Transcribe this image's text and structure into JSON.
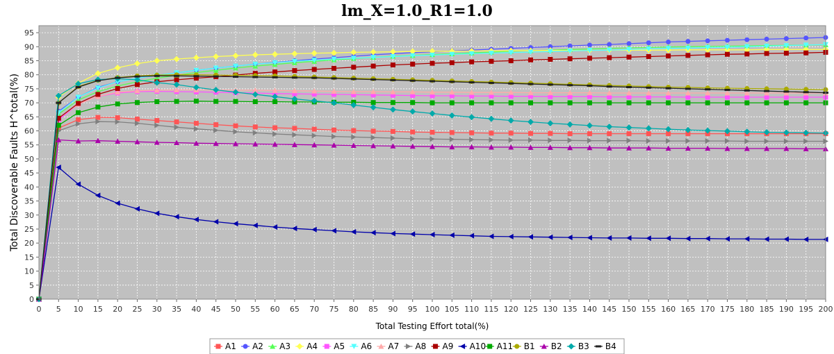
{
  "chart_data": {
    "type": "line",
    "title": "lm_X=1.0_R1=1.0",
    "xlabel": "Total Testing Effort total(%)",
    "ylabel": "Total Discoverable Faults H^total(%)",
    "xlim": [
      0,
      200
    ],
    "ylim": [
      0,
      97.5
    ],
    "x_ticks": [
      0,
      5,
      10,
      15,
      20,
      25,
      30,
      35,
      40,
      45,
      50,
      55,
      60,
      65,
      70,
      75,
      80,
      85,
      90,
      95,
      100,
      105,
      110,
      115,
      120,
      125,
      130,
      135,
      140,
      145,
      150,
      155,
      160,
      165,
      170,
      175,
      180,
      185,
      190,
      195,
      200
    ],
    "y_ticks": [
      0,
      5,
      10,
      15,
      20,
      25,
      30,
      35,
      40,
      45,
      50,
      55,
      60,
      65,
      70,
      75,
      80,
      85,
      90,
      95
    ],
    "grid": true,
    "background_color": "#c0c0c0",
    "legend_position": "bottom",
    "x": [
      0,
      5,
      10,
      15,
      20,
      25,
      30,
      35,
      40,
      45,
      50,
      55,
      60,
      65,
      70,
      75,
      80,
      85,
      90,
      95,
      100,
      105,
      110,
      115,
      120,
      125,
      130,
      135,
      140,
      145,
      150,
      155,
      160,
      165,
      170,
      175,
      180,
      185,
      190,
      195,
      200
    ],
    "series": [
      {
        "name": "A1",
        "color": "#ff5555",
        "marker": "square",
        "values": [
          0,
          61,
          64,
          64.8,
          64.7,
          64.2,
          63.7,
          63.2,
          62.7,
          62.2,
          61.8,
          61.4,
          61.1,
          60.9,
          60.6,
          60.3,
          60.1,
          59.9,
          59.8,
          59.6,
          59.5,
          59.4,
          59.3,
          59.2,
          59.2,
          59.1,
          59.1,
          59.0,
          59.0,
          59.0,
          59.0,
          59.0,
          59.0,
          59.0,
          59.0,
          59.0,
          59.0,
          59.0,
          59.0,
          59.0,
          59.0
        ]
      },
      {
        "name": "A2",
        "color": "#5555ff",
        "marker": "circle",
        "values": [
          0,
          67,
          72,
          75.5,
          77.5,
          78.8,
          79.8,
          80.7,
          81.6,
          82.4,
          83.1,
          83.8,
          84.4,
          85.0,
          85.6,
          86.1,
          86.6,
          87.1,
          87.5,
          87.9,
          88.2,
          88.5,
          88.8,
          89.1,
          89.4,
          89.7,
          90.0,
          90.3,
          90.6,
          90.8,
          91.1,
          91.4,
          91.7,
          91.9,
          92.1,
          92.3,
          92.5,
          92.7,
          92.9,
          93.1,
          93.3
        ]
      },
      {
        "name": "A3",
        "color": "#55ff55",
        "marker": "triangle-up",
        "values": [
          0,
          66,
          71,
          74,
          76,
          77.5,
          78.8,
          79.8,
          80.8,
          81.6,
          82.4,
          83.1,
          83.7,
          84.3,
          84.8,
          85.3,
          85.8,
          86.2,
          86.6,
          86.9,
          87.2,
          87.5,
          87.8,
          88.1,
          88.4,
          88.6,
          88.8,
          89.0,
          89.2,
          89.4,
          89.6,
          89.7,
          89.9,
          90.0,
          90.1,
          90.2,
          90.3,
          90.4,
          90.5,
          90.6,
          90.7
        ]
      },
      {
        "name": "A4",
        "color": "#ffff55",
        "marker": "diamond",
        "values": [
          0,
          72,
          77,
          80.5,
          82.5,
          84,
          85,
          85.6,
          86.1,
          86.5,
          86.8,
          87.1,
          87.3,
          87.5,
          87.7,
          87.8,
          88.0,
          88.1,
          88.2,
          88.3,
          88.4,
          88.4,
          88.5,
          88.5,
          88.6,
          88.6,
          88.7,
          88.7,
          88.7,
          88.8,
          88.8,
          88.8,
          88.8,
          88.9,
          88.9,
          88.9,
          88.9,
          89.0,
          89.0,
          89.0,
          89.0
        ]
      },
      {
        "name": "A5",
        "color": "#ff55ff",
        "marker": "square",
        "values": [
          0,
          64,
          69.5,
          72.3,
          73.5,
          74,
          74.1,
          74,
          73.9,
          73.8,
          73.6,
          73.5,
          73.3,
          73.2,
          73.1,
          73.0,
          72.9,
          72.8,
          72.7,
          72.6,
          72.5,
          72.5,
          72.4,
          72.4,
          72.3,
          72.3,
          72.2,
          72.2,
          72.2,
          72.1,
          72.1,
          72.1,
          72.1,
          72.0,
          72.0,
          72.0,
          72.0,
          72.0,
          72.0,
          72.0,
          72.0
        ]
      },
      {
        "name": "A6",
        "color": "#55ffff",
        "marker": "triangle-down",
        "values": [
          0,
          66.5,
          72,
          75.3,
          77.5,
          78.8,
          79.8,
          80.7,
          81.6,
          82.4,
          83.1,
          83.8,
          84.3,
          84.8,
          85.2,
          85.6,
          85.9,
          86.2,
          86.5,
          86.8,
          87.0,
          87.3,
          87.5,
          87.7,
          87.9,
          88.1,
          88.3,
          88.5,
          88.7,
          88.8,
          89.0,
          89.2,
          89.4,
          89.5,
          89.7,
          89.8,
          90.0,
          90.2,
          90.4,
          90.6,
          90.8
        ]
      },
      {
        "name": "A7",
        "color": "#ffaaaa",
        "marker": "triangle-up",
        "values": [
          0,
          64.5,
          69.5,
          72.3,
          73.8,
          74.3,
          74.5,
          74.6,
          74.6,
          74.6,
          74.5,
          74.5,
          74.4,
          74.3,
          74.2,
          74.1,
          74.0,
          74.0,
          73.9,
          73.9,
          73.8,
          73.8,
          73.7,
          73.7,
          73.7,
          73.6,
          73.6,
          73.6,
          73.6,
          73.5,
          73.5,
          73.5,
          73.5,
          73.5,
          73.5,
          73.5,
          73.5,
          73.5,
          73.5,
          73.5,
          73.5
        ]
      },
      {
        "name": "A8",
        "color": "#808080",
        "marker": "triangle-right",
        "values": [
          0,
          60,
          62.5,
          63.3,
          63.2,
          62.7,
          62,
          61.3,
          60.7,
          60.2,
          59.7,
          59.3,
          58.9,
          58.6,
          58.3,
          58.0,
          57.8,
          57.6,
          57.4,
          57.2,
          57.1,
          57.0,
          56.9,
          56.8,
          56.7,
          56.7,
          56.6,
          56.6,
          56.5,
          56.5,
          56.5,
          56.4,
          56.4,
          56.4,
          56.4,
          56.4,
          56.3,
          56.3,
          56.3,
          56.3,
          56.3
        ]
      },
      {
        "name": "A9",
        "color": "#aa0000",
        "marker": "square",
        "values": [
          0,
          64.5,
          69.8,
          73,
          75.1,
          76.5,
          77.5,
          78.2,
          78.8,
          79.3,
          79.9,
          80.5,
          81.0,
          81.5,
          81.9,
          82.3,
          82.7,
          83.1,
          83.5,
          83.8,
          84.1,
          84.3,
          84.6,
          84.8,
          85.0,
          85.3,
          85.5,
          85.7,
          85.9,
          86.1,
          86.3,
          86.5,
          86.7,
          86.9,
          87.1,
          87.3,
          87.4,
          87.6,
          87.7,
          87.8,
          88.0
        ]
      },
      {
        "name": "A10",
        "color": "#0000aa",
        "marker": "triangle-left",
        "values": [
          0,
          47,
          41,
          37,
          34.2,
          32.2,
          30.6,
          29.4,
          28.4,
          27.6,
          26.9,
          26.3,
          25.7,
          25.2,
          24.8,
          24.4,
          24.0,
          23.7,
          23.4,
          23.2,
          23.0,
          22.8,
          22.6,
          22.4,
          22.3,
          22.2,
          22.1,
          22.0,
          21.9,
          21.8,
          21.8,
          21.7,
          21.7,
          21.6,
          21.6,
          21.5,
          21.5,
          21.4,
          21.4,
          21.3,
          21.3
        ]
      },
      {
        "name": "A11",
        "color": "#00aa00",
        "marker": "square",
        "values": [
          0,
          62,
          66.5,
          68.5,
          69.6,
          70.1,
          70.4,
          70.5,
          70.6,
          70.5,
          70.5,
          70.4,
          70.4,
          70.3,
          70.3,
          70.2,
          70.2,
          70.1,
          70.1,
          70.1,
          70.0,
          70.0,
          70.0,
          70.0,
          70.0,
          70.0,
          70.0,
          70.0,
          70.0,
          70.0,
          70.0,
          70.0,
          70.0,
          70.0,
          70.0,
          70.0,
          70.0,
          70.0,
          70.0,
          70.0,
          70.0
        ]
      },
      {
        "name": "B1",
        "color": "#aaaa00",
        "marker": "circle",
        "values": [
          0,
          70,
          75.8,
          78,
          79,
          79.6,
          79.9,
          80,
          80,
          79.9,
          79.8,
          79.7,
          79.6,
          79.4,
          79.2,
          79.0,
          78.8,
          78.6,
          78.4,
          78.2,
          78.0,
          77.8,
          77.6,
          77.4,
          77.2,
          77.0,
          76.8,
          76.6,
          76.4,
          76.2,
          76.0,
          75.8,
          75.6,
          75.5,
          75.3,
          75.2,
          75.1,
          75.0,
          74.9,
          74.8,
          74.7
        ]
      },
      {
        "name": "B2",
        "color": "#aa00aa",
        "marker": "triangle-up",
        "values": [
          0,
          56.8,
          56.4,
          56.5,
          56.3,
          56.1,
          55.9,
          55.8,
          55.6,
          55.5,
          55.4,
          55.3,
          55.2,
          55.1,
          55.0,
          54.9,
          54.8,
          54.7,
          54.6,
          54.5,
          54.4,
          54.3,
          54.3,
          54.2,
          54.2,
          54.1,
          54.1,
          54.0,
          54.0,
          53.9,
          53.9,
          53.9,
          53.8,
          53.8,
          53.8,
          53.7,
          53.7,
          53.7,
          53.7,
          53.6,
          53.6
        ]
      },
      {
        "name": "B3",
        "color": "#00aaaa",
        "marker": "diamond",
        "values": [
          0,
          72.5,
          76.8,
          78.3,
          78.6,
          78.2,
          77.2,
          76.5,
          75.5,
          74.6,
          73.8,
          73.0,
          72.2,
          71.4,
          70.7,
          70.0,
          69.2,
          68.4,
          67.6,
          66.9,
          66.2,
          65.5,
          64.9,
          64.3,
          63.7,
          63.2,
          62.7,
          62.3,
          61.9,
          61.5,
          61.2,
          60.9,
          60.6,
          60.3,
          60.1,
          59.9,
          59.7,
          59.5,
          59.4,
          59.3,
          59.2
        ]
      },
      {
        "name": "B4",
        "color": "#222222",
        "marker": "dash",
        "values": [
          0,
          70,
          75.6,
          77.9,
          78.9,
          79.4,
          79.6,
          79.6,
          79.5,
          79.4,
          79.3,
          79.2,
          79.1,
          79.0,
          78.9,
          78.7,
          78.5,
          78.3,
          78.1,
          77.9,
          77.7,
          77.5,
          77.3,
          77.1,
          76.9,
          76.7,
          76.5,
          76.3,
          76.1,
          75.8,
          75.6,
          75.4,
          75.2,
          75.0,
          74.8,
          74.6,
          74.4,
          74.2,
          74.0,
          73.8,
          73.6
        ]
      }
    ]
  }
}
